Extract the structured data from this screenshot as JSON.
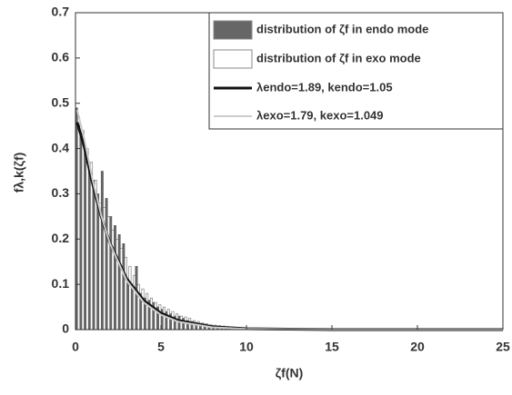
{
  "chart_data": {
    "type": "histogram",
    "xlabel": "ζf(N)",
    "ylabel": "fλ,k(ζf)",
    "xlim": [
      0,
      25
    ],
    "ylim": [
      0,
      0.7
    ],
    "xticks": [
      0,
      5,
      10,
      15,
      20,
      25
    ],
    "yticks": [
      0,
      0.1,
      0.2,
      0.3,
      0.4,
      0.5,
      0.6,
      0.7
    ],
    "bins": [
      0,
      0.25,
      0.5,
      0.75,
      1,
      1.25,
      1.5,
      1.75,
      2,
      2.25,
      2.5,
      2.75,
      3,
      3.25,
      3.5,
      3.75,
      4,
      4.25,
      4.5,
      4.75,
      5,
      5.25,
      5.5,
      5.75,
      6,
      6.25,
      6.5,
      6.75,
      7,
      7.25,
      7.5,
      7.75,
      8,
      8.25,
      8.5,
      8.75,
      9,
      9.25,
      9.5,
      9.75,
      10
    ],
    "series": [
      {
        "name": "distribution of ζf in endo mode",
        "color": "#666666",
        "values": [
          0.49,
          0.43,
          0.39,
          0.36,
          0.33,
          0.3,
          0.35,
          0.29,
          0.25,
          0.23,
          0.21,
          0.19,
          0.11,
          0.1,
          0.14,
          0.08,
          0.07,
          0.065,
          0.06,
          0.05,
          0.045,
          0.04,
          0.035,
          0.03,
          0.03,
          0.025,
          0.02,
          0.018,
          0.015,
          0.013,
          0.012,
          0.01,
          0.009,
          0.008,
          0.007,
          0.006,
          0.006,
          0.005,
          0.005,
          0.004
        ]
      },
      {
        "name": "distribution of ζf in exo mode",
        "color": "#ffffff",
        "values": [
          0.47,
          0.44,
          0.4,
          0.37,
          0.33,
          0.28,
          0.27,
          0.25,
          0.22,
          0.2,
          0.18,
          0.16,
          0.14,
          0.12,
          0.1,
          0.09,
          0.08,
          0.07,
          0.06,
          0.055,
          0.05,
          0.045,
          0.04,
          0.035,
          0.03,
          0.028,
          0.025,
          0.02,
          0.018,
          0.015,
          0.013,
          0.011,
          0.01,
          0.009,
          0.008,
          0.007,
          0.006,
          0.005,
          0.004,
          0.003
        ]
      }
    ],
    "lines": [
      {
        "name": "λendo=1.89, kendo=1.05",
        "color": "#111111",
        "x": [
          0.1,
          0.5,
          1,
          1.5,
          2,
          3,
          4,
          5,
          6,
          8,
          10,
          15,
          20,
          25
        ],
        "values": [
          0.458,
          0.406,
          0.3225,
          0.25,
          0.1928,
          0.112,
          0.064,
          0.0363,
          0.0204,
          0.0063,
          0.0019,
          0.0001,
          0,
          0
        ]
      },
      {
        "name": "λexo=1.79, kexo=1.049",
        "color": "#cccccc",
        "x": [
          0.1,
          0.5,
          1,
          1.5,
          2,
          3,
          4,
          5,
          6,
          8,
          10,
          15,
          20,
          25
        ],
        "values": [
          0.485,
          0.4235,
          0.331,
          0.253,
          0.1917,
          0.1077,
          0.0597,
          0.0327,
          0.0177,
          0.0051,
          0.0015,
          0.0001,
          0,
          0
        ]
      }
    ]
  }
}
